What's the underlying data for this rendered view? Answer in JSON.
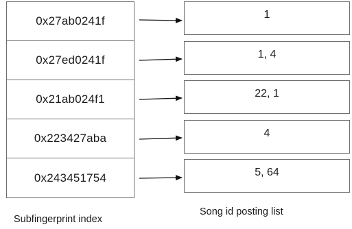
{
  "index": {
    "caption": "Subfingerprint index",
    "entries": [
      "0x27ab0241f",
      "0x27ed0241f",
      "0x21ab024f1",
      "0x223427aba",
      "0x243451754"
    ]
  },
  "postings": {
    "caption": "Song id posting list",
    "lists": [
      "1",
      "1, 4",
      "22, 1",
      "4",
      "5, 64"
    ]
  },
  "colors": {
    "border": "#6f6f6f",
    "arrow": "#111111",
    "text": "#1a1a1a"
  }
}
